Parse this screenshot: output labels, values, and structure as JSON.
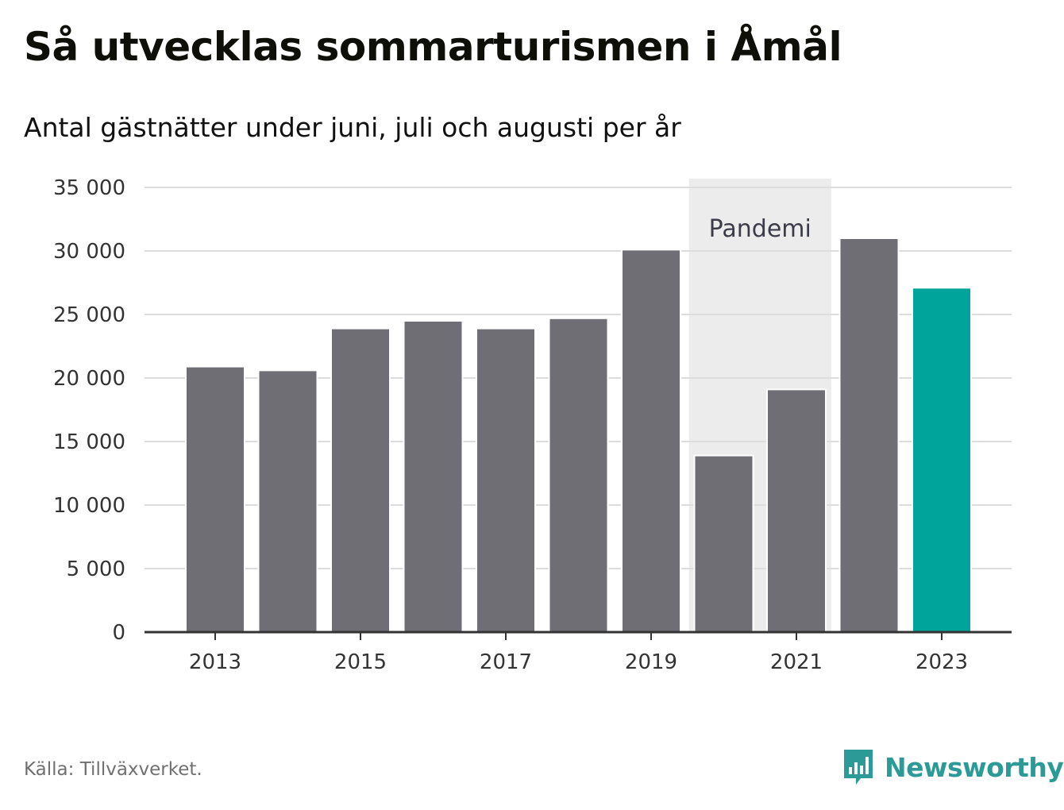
{
  "header": {
    "title": "Så utvecklas sommarturismen i Åmål",
    "subtitle": "Antal gästnätter under juni, juli och augusti per år"
  },
  "footer": {
    "source": "Källa: Tillväxverket.",
    "brand": "Newsworthy"
  },
  "colors": {
    "bar": "#6f6e75",
    "highlight": "#00a49a",
    "band": "#ececec",
    "grid": "#dddddd",
    "axis": "#333333",
    "brand": "#2c9b97"
  },
  "chart_data": {
    "type": "bar",
    "title": "Så utvecklas sommarturismen i Åmål",
    "subtitle": "Antal gästnätter under juni, juli och augusti per år",
    "xlabel": "",
    "ylabel": "",
    "categories": [
      "2013",
      "2014",
      "2015",
      "2016",
      "2017",
      "2018",
      "2019",
      "2020",
      "2021",
      "2022",
      "2023"
    ],
    "values": [
      20900,
      20600,
      23900,
      24500,
      23900,
      24700,
      30100,
      13900,
      19100,
      31000,
      27100
    ],
    "highlight_category": "2023",
    "ylim": [
      0,
      35000
    ],
    "y_ticks": [
      0,
      5000,
      10000,
      15000,
      20000,
      25000,
      30000,
      35000
    ],
    "y_tick_labels": [
      "0",
      "5 000",
      "10 000",
      "15 000",
      "20 000",
      "25 000",
      "30 000",
      "35 000"
    ],
    "x_tick_labels": [
      "2013",
      "2015",
      "2017",
      "2019",
      "2021",
      "2023"
    ],
    "grid": true,
    "annotations": [
      {
        "label": "Pandemi",
        "from": "2020",
        "to": "2021"
      }
    ]
  }
}
